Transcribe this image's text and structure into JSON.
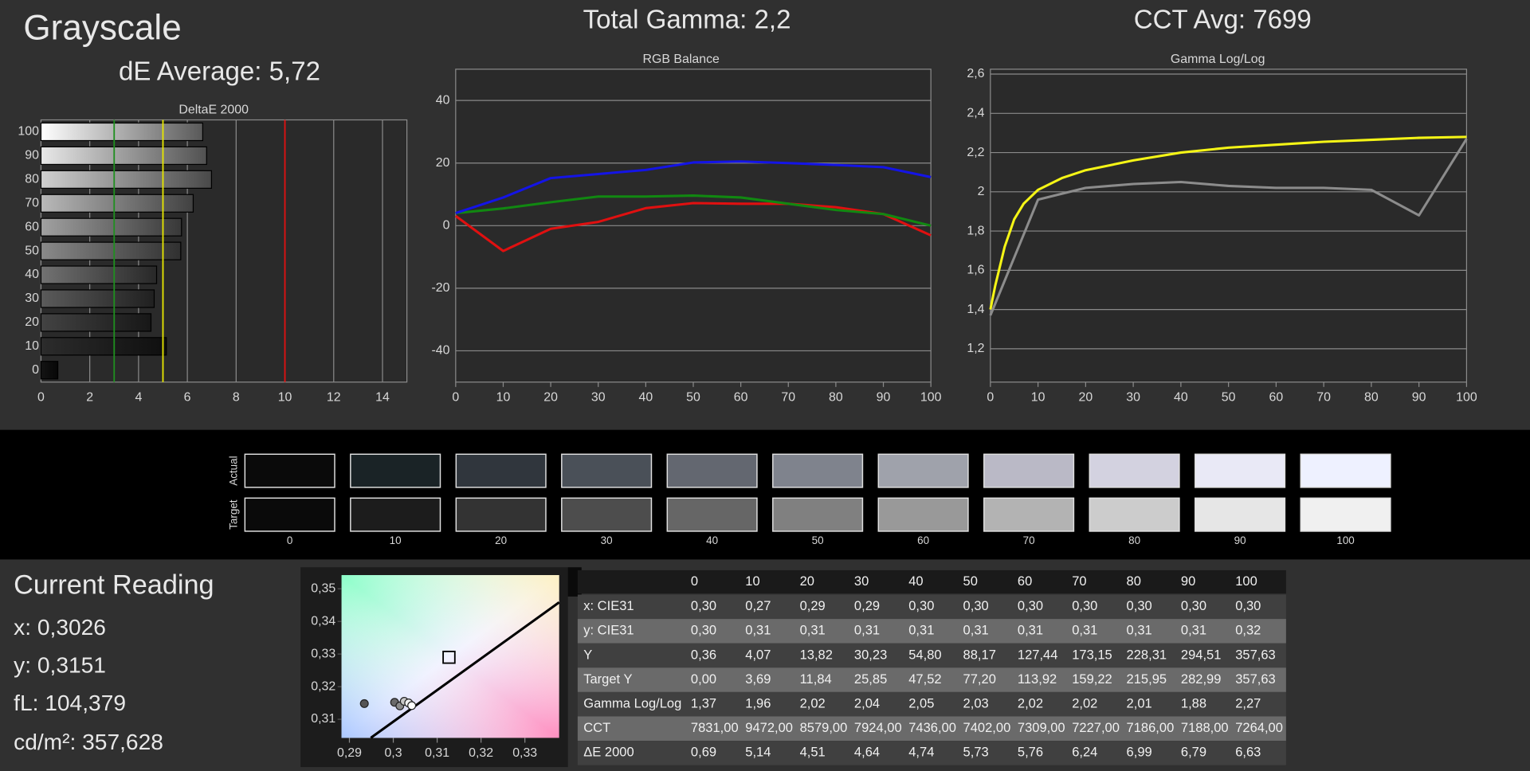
{
  "header": {
    "title": "Grayscale",
    "de_average": "dE Average: 5,72",
    "total_gamma": "Total Gamma: 2,2",
    "cct_avg": "CCT Avg: 7699"
  },
  "chart_data": [
    {
      "type": "hbar",
      "title": "DeltaE 2000",
      "categories": [
        "0",
        "10",
        "20",
        "30",
        "40",
        "50",
        "60",
        "70",
        "80",
        "90",
        "100"
      ],
      "values": [
        0.69,
        5.14,
        4.51,
        4.64,
        4.74,
        5.73,
        5.76,
        6.24,
        6.99,
        6.79,
        6.63
      ],
      "xlim": [
        0,
        15
      ],
      "xticks": [
        0,
        2,
        4,
        6,
        8,
        10,
        12,
        14
      ],
      "grid": true,
      "reference_lines": [
        {
          "value": 3,
          "color": "#1f8f1f"
        },
        {
          "value": 5,
          "color": "#e6e600"
        },
        {
          "value": 10,
          "color": "#e01010"
        }
      ]
    },
    {
      "type": "line",
      "title": "RGB Balance",
      "x": [
        0,
        10,
        20,
        30,
        40,
        50,
        60,
        70,
        80,
        90,
        100
      ],
      "series": [
        {
          "color": "#e01010",
          "values": [
            3.1,
            -8.1,
            -1,
            1.2,
            5.6,
            7.2,
            7,
            7,
            5.9,
            3.7,
            -3.1
          ]
        },
        {
          "color": "#118811",
          "values": [
            4,
            5.5,
            7.5,
            9.3,
            9.3,
            9.6,
            9,
            7,
            5,
            3.7,
            0
          ]
        },
        {
          "color": "#1414e6",
          "values": [
            4,
            9,
            15.2,
            16.5,
            17.8,
            20.2,
            20.5,
            20,
            19.4,
            18.7,
            15.5
          ]
        }
      ],
      "xlim": [
        0,
        100
      ],
      "xticks": [
        0,
        10,
        20,
        30,
        40,
        50,
        60,
        70,
        80,
        90,
        100
      ],
      "ylim": [
        -50,
        50
      ],
      "yticks": [
        -40,
        -20,
        0,
        20,
        40
      ],
      "grid": true
    },
    {
      "type": "line",
      "title": "Gamma Log/Log",
      "series": [
        {
          "color": "#f5f516",
          "x": [
            0,
            1,
            2,
            3,
            5,
            7,
            10,
            15,
            20,
            30,
            40,
            50,
            60,
            70,
            80,
            90,
            100
          ],
          "values": [
            1.4,
            1.52,
            1.62,
            1.72,
            1.86,
            1.94,
            2.01,
            2.07,
            2.11,
            2.16,
            2.2,
            2.225,
            2.24,
            2.255,
            2.265,
            2.275,
            2.28
          ]
        },
        {
          "color": "#8c8c8c",
          "x": [
            0,
            10,
            20,
            30,
            40,
            50,
            60,
            70,
            80,
            90,
            100
          ],
          "values": [
            1.37,
            1.96,
            2.02,
            2.04,
            2.05,
            2.03,
            2.02,
            2.02,
            2.01,
            1.88,
            2.27
          ]
        }
      ],
      "xlim": [
        0,
        100
      ],
      "xticks": [
        0,
        10,
        20,
        30,
        40,
        50,
        60,
        70,
        80,
        90,
        100
      ],
      "ylim": [
        1.03,
        2.625
      ],
      "yticks": [
        {
          "value": 1.2,
          "label": "1,2"
        },
        {
          "value": 1.4,
          "label": "1,4"
        },
        {
          "value": 1.6,
          "label": "1,6"
        },
        {
          "value": 1.8,
          "label": "1,8"
        },
        2,
        {
          "value": 2.2,
          "label": "2,2"
        },
        {
          "value": 2.4,
          "label": "2,4"
        },
        {
          "value": 2.6,
          "label": "2,6"
        }
      ],
      "grid": true
    },
    {
      "type": "scatter",
      "series": [
        {
          "colors": [
            "#555555",
            "#6a6a6a",
            "#8a8a8a",
            "#c8c8c8",
            "#f0f0f0",
            "#ffffff"
          ],
          "x": [
            0.2934,
            0.3003,
            0.3015,
            0.3025,
            0.3035,
            0.3042
          ],
          "values": [
            0.3148,
            0.3152,
            0.3141,
            0.3155,
            0.315,
            0.3142
          ]
        },
        {
          "marker": "square",
          "x": [
            0.3127
          ],
          "values": [
            0.329
          ]
        }
      ],
      "xlim": [
        0.2882,
        0.3378
      ],
      "xticks": [
        {
          "value": 0.29,
          "label": "0,29"
        },
        {
          "value": 0.3,
          "label": "0,3"
        },
        {
          "value": 0.31,
          "label": "0,31"
        },
        {
          "value": 0.32,
          "label": "0,32"
        },
        {
          "value": 0.33,
          "label": "0,33"
        }
      ],
      "ylim": [
        0.3043,
        0.3542
      ],
      "yticks": [
        {
          "value": 0.31,
          "label": "0,31"
        },
        {
          "value": 0.32,
          "label": "0,32"
        },
        {
          "value": 0.33,
          "label": "0,33"
        },
        {
          "value": 0.34,
          "label": "0,34"
        },
        {
          "value": 0.35,
          "label": "0,35"
        }
      ]
    }
  ],
  "swatches": {
    "row_labels": [
      "Actual",
      "Target"
    ],
    "levels": [
      "0",
      "10",
      "20",
      "30",
      "40",
      "50",
      "60",
      "70",
      "80",
      "90",
      "100"
    ],
    "actual_colors": [
      "#0a0a0a",
      "#1a2326",
      "#30363d",
      "#4a5058",
      "#636770",
      "#7f838d",
      "#9fa2ab",
      "#bab9c6",
      "#d3d2e0",
      "#e9e9f6",
      "#eef1ff"
    ],
    "target_colors": [
      "#0a0a0a",
      "#1c1c1c",
      "#333333",
      "#4d4d4d",
      "#666666",
      "#808080",
      "#999999",
      "#b3b3b3",
      "#cccccc",
      "#e6e6e6",
      "#f0f0f0"
    ]
  },
  "current_reading": {
    "title": "Current Reading",
    "lines": [
      "x: 0,3026",
      "y: 0,3151",
      "fL: 104,379",
      "cd/m²: 357,628"
    ]
  },
  "table": {
    "columns": [
      "0",
      "10",
      "20",
      "30",
      "40",
      "50",
      "60",
      "70",
      "80",
      "90",
      "100"
    ],
    "rows": [
      {
        "label": "x: CIE31",
        "values": [
          "0,30",
          "0,27",
          "0,29",
          "0,29",
          "0,30",
          "0,30",
          "0,30",
          "0,30",
          "0,30",
          "0,30",
          "0,30"
        ]
      },
      {
        "label": "y: CIE31",
        "values": [
          "0,30",
          "0,31",
          "0,31",
          "0,31",
          "0,31",
          "0,31",
          "0,31",
          "0,31",
          "0,31",
          "0,31",
          "0,32"
        ]
      },
      {
        "label": "Y",
        "values": [
          "0,36",
          "4,07",
          "13,82",
          "30,23",
          "54,80",
          "88,17",
          "127,44",
          "173,15",
          "228,31",
          "294,51",
          "357,63"
        ]
      },
      {
        "label": "Target Y",
        "values": [
          "0,00",
          "3,69",
          "11,84",
          "25,85",
          "47,52",
          "77,20",
          "113,92",
          "159,22",
          "215,95",
          "282,99",
          "357,63"
        ]
      },
      {
        "label": "Gamma Log/Log",
        "values": [
          "1,37",
          "1,96",
          "2,02",
          "2,04",
          "2,05",
          "2,03",
          "2,02",
          "2,02",
          "2,01",
          "1,88",
          "2,27"
        ]
      },
      {
        "label": "CCT",
        "values": [
          "7831,00",
          "9472,00",
          "8579,00",
          "7924,00",
          "7436,00",
          "7402,00",
          "7309,00",
          "7227,00",
          "7186,00",
          "7188,00",
          "7264,00"
        ]
      },
      {
        "label": "ΔE 2000",
        "values": [
          "0,69",
          "5,14",
          "4,51",
          "4,64",
          "4,74",
          "5,73",
          "5,76",
          "6,24",
          "6,99",
          "6,79",
          "6,63"
        ]
      }
    ]
  }
}
